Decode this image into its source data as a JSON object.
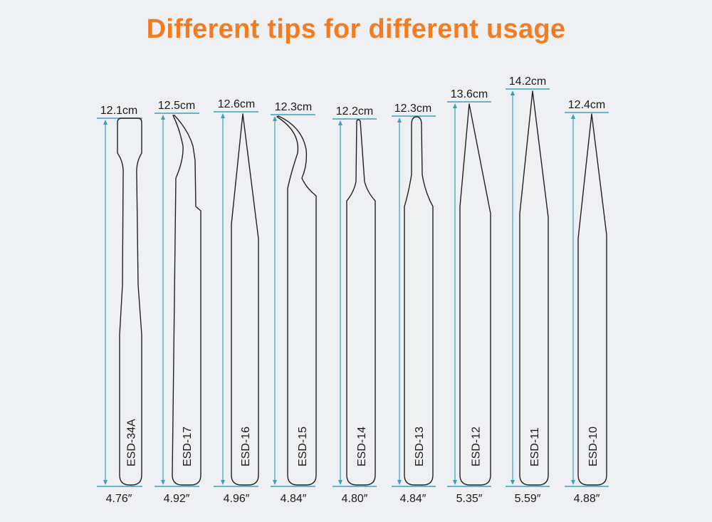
{
  "title": "Different tips for different usage",
  "colors": {
    "title": "#f47c20",
    "dimension_line": "#3a9fc6",
    "outline": "#222222",
    "background": "#eef0f3"
  },
  "tweezers": [
    {
      "model": "ESD-34A",
      "length_cm": "12.1cm",
      "length_in": "4.76″",
      "tip": "flat-wide"
    },
    {
      "model": "ESD-17",
      "length_cm": "12.5cm",
      "length_in": "4.92″",
      "tip": "curved-fine"
    },
    {
      "model": "ESD-16",
      "length_cm": "12.6cm",
      "length_in": "4.96″",
      "tip": "straight-fine"
    },
    {
      "model": "ESD-15",
      "length_cm": "12.3cm",
      "length_in": "4.84″",
      "tip": "hooked"
    },
    {
      "model": "ESD-14",
      "length_cm": "12.2cm",
      "length_in": "4.80″",
      "tip": "narrow-blunt"
    },
    {
      "model": "ESD-13",
      "length_cm": "12.3cm",
      "length_in": "4.84″",
      "tip": "round"
    },
    {
      "model": "ESD-12",
      "length_cm": "13.6cm",
      "length_in": "5.35″",
      "tip": "pointed"
    },
    {
      "model": "ESD-11",
      "length_cm": "14.2cm",
      "length_in": "5.59″",
      "tip": "extra-fine-pointed"
    },
    {
      "model": "ESD-10",
      "length_cm": "12.4cm",
      "length_in": "4.88″",
      "tip": "pointed"
    }
  ]
}
